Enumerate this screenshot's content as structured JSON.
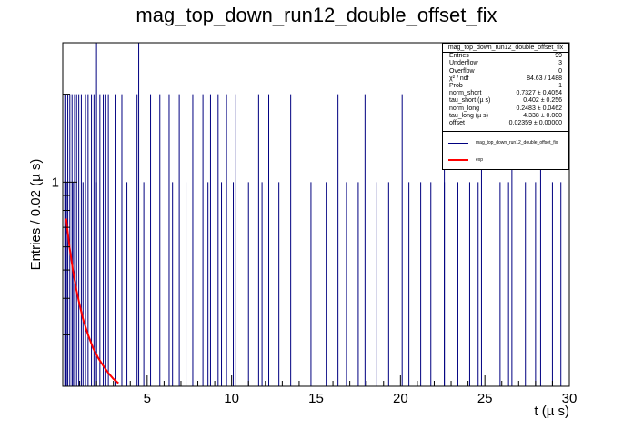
{
  "chart_data": {
    "type": "bar",
    "title": "mag_top_down_run12_double_offset_fix",
    "xlabel": "t (µ s)",
    "ylabel": "Entries / 0.02 (µ s)",
    "xlim": [
      0,
      30
    ],
    "ylim": [
      0.2,
      3
    ],
    "yscale": "log",
    "xticks": [
      "5",
      "10",
      "15",
      "20",
      "25",
      "30"
    ],
    "yticks": [
      "1"
    ],
    "bin_width": 0.02,
    "hist_color": "#000080",
    "fit_color": "#ff0000",
    "bins_count2": [
      0.12,
      0.18,
      0.3,
      0.42,
      0.55,
      0.7,
      0.82,
      0.95,
      1.1,
      1.35,
      1.5,
      1.7,
      1.85,
      2.2,
      2.4,
      2.55,
      2.7,
      3.1,
      3.5,
      4.4,
      5.2,
      5.75,
      6.3,
      6.9,
      7.7,
      8.3,
      8.75,
      9.2,
      9.7,
      10.25,
      11.6,
      12.2,
      13.5,
      16.3,
      17.9,
      20.1,
      22.6,
      24.8,
      26.6,
      28.3
    ],
    "bins_count3": [
      2.0,
      4.5
    ],
    "bins_count1": [
      0.22,
      0.6,
      1.2,
      2.0,
      3.8,
      4.8,
      6.5,
      7.3,
      8.6,
      9.4,
      10.1,
      11.0,
      11.8,
      12.8,
      14.7,
      15.6,
      16.8,
      17.5,
      18.6,
      19.3,
      20.5,
      21.2,
      21.8,
      22.6,
      23.4,
      24.1,
      24.6,
      25.9,
      26.4,
      27.4,
      28.0,
      29.0,
      29.5
    ],
    "fit_curve": {
      "x": [
        0.2,
        0.4,
        0.6,
        0.8,
        1.0,
        1.2,
        1.5,
        1.8,
        2.1,
        2.4,
        2.7,
        3.0,
        3.3
      ],
      "y": [
        0.75,
        0.6,
        0.5,
        0.43,
        0.38,
        0.34,
        0.3,
        0.27,
        0.25,
        0.235,
        0.222,
        0.212,
        0.205
      ]
    },
    "stats": {
      "title": "mag_top_down_run12_double_offset_fix",
      "rows": [
        {
          "label": "Entries",
          "value": "99"
        },
        {
          "label": "Underflow",
          "value": "3"
        },
        {
          "label": "Overflow",
          "value": "0"
        },
        {
          "label": "χ² / ndf",
          "value": "84.63 / 1488"
        },
        {
          "label": "Prob",
          "value": "1"
        },
        {
          "label": "norm_short",
          "value": "0.7327 ± 0.4054"
        },
        {
          "label": "tau_short (µ s)",
          "value": "0.402 ± 0.256"
        },
        {
          "label": "norm_long",
          "value": "0.2483 ± 0.0462"
        },
        {
          "label": "tau_long (µ s)",
          "value": "4.338 ± 0.000"
        },
        {
          "label": "offset",
          "value": "0.02359 ± 0.00000"
        }
      ]
    },
    "legend": [
      {
        "name": "mag_top_down_run12_double_offset_fix",
        "color": "#000080"
      },
      {
        "name": "exp",
        "color": "#ff0000"
      }
    ]
  }
}
